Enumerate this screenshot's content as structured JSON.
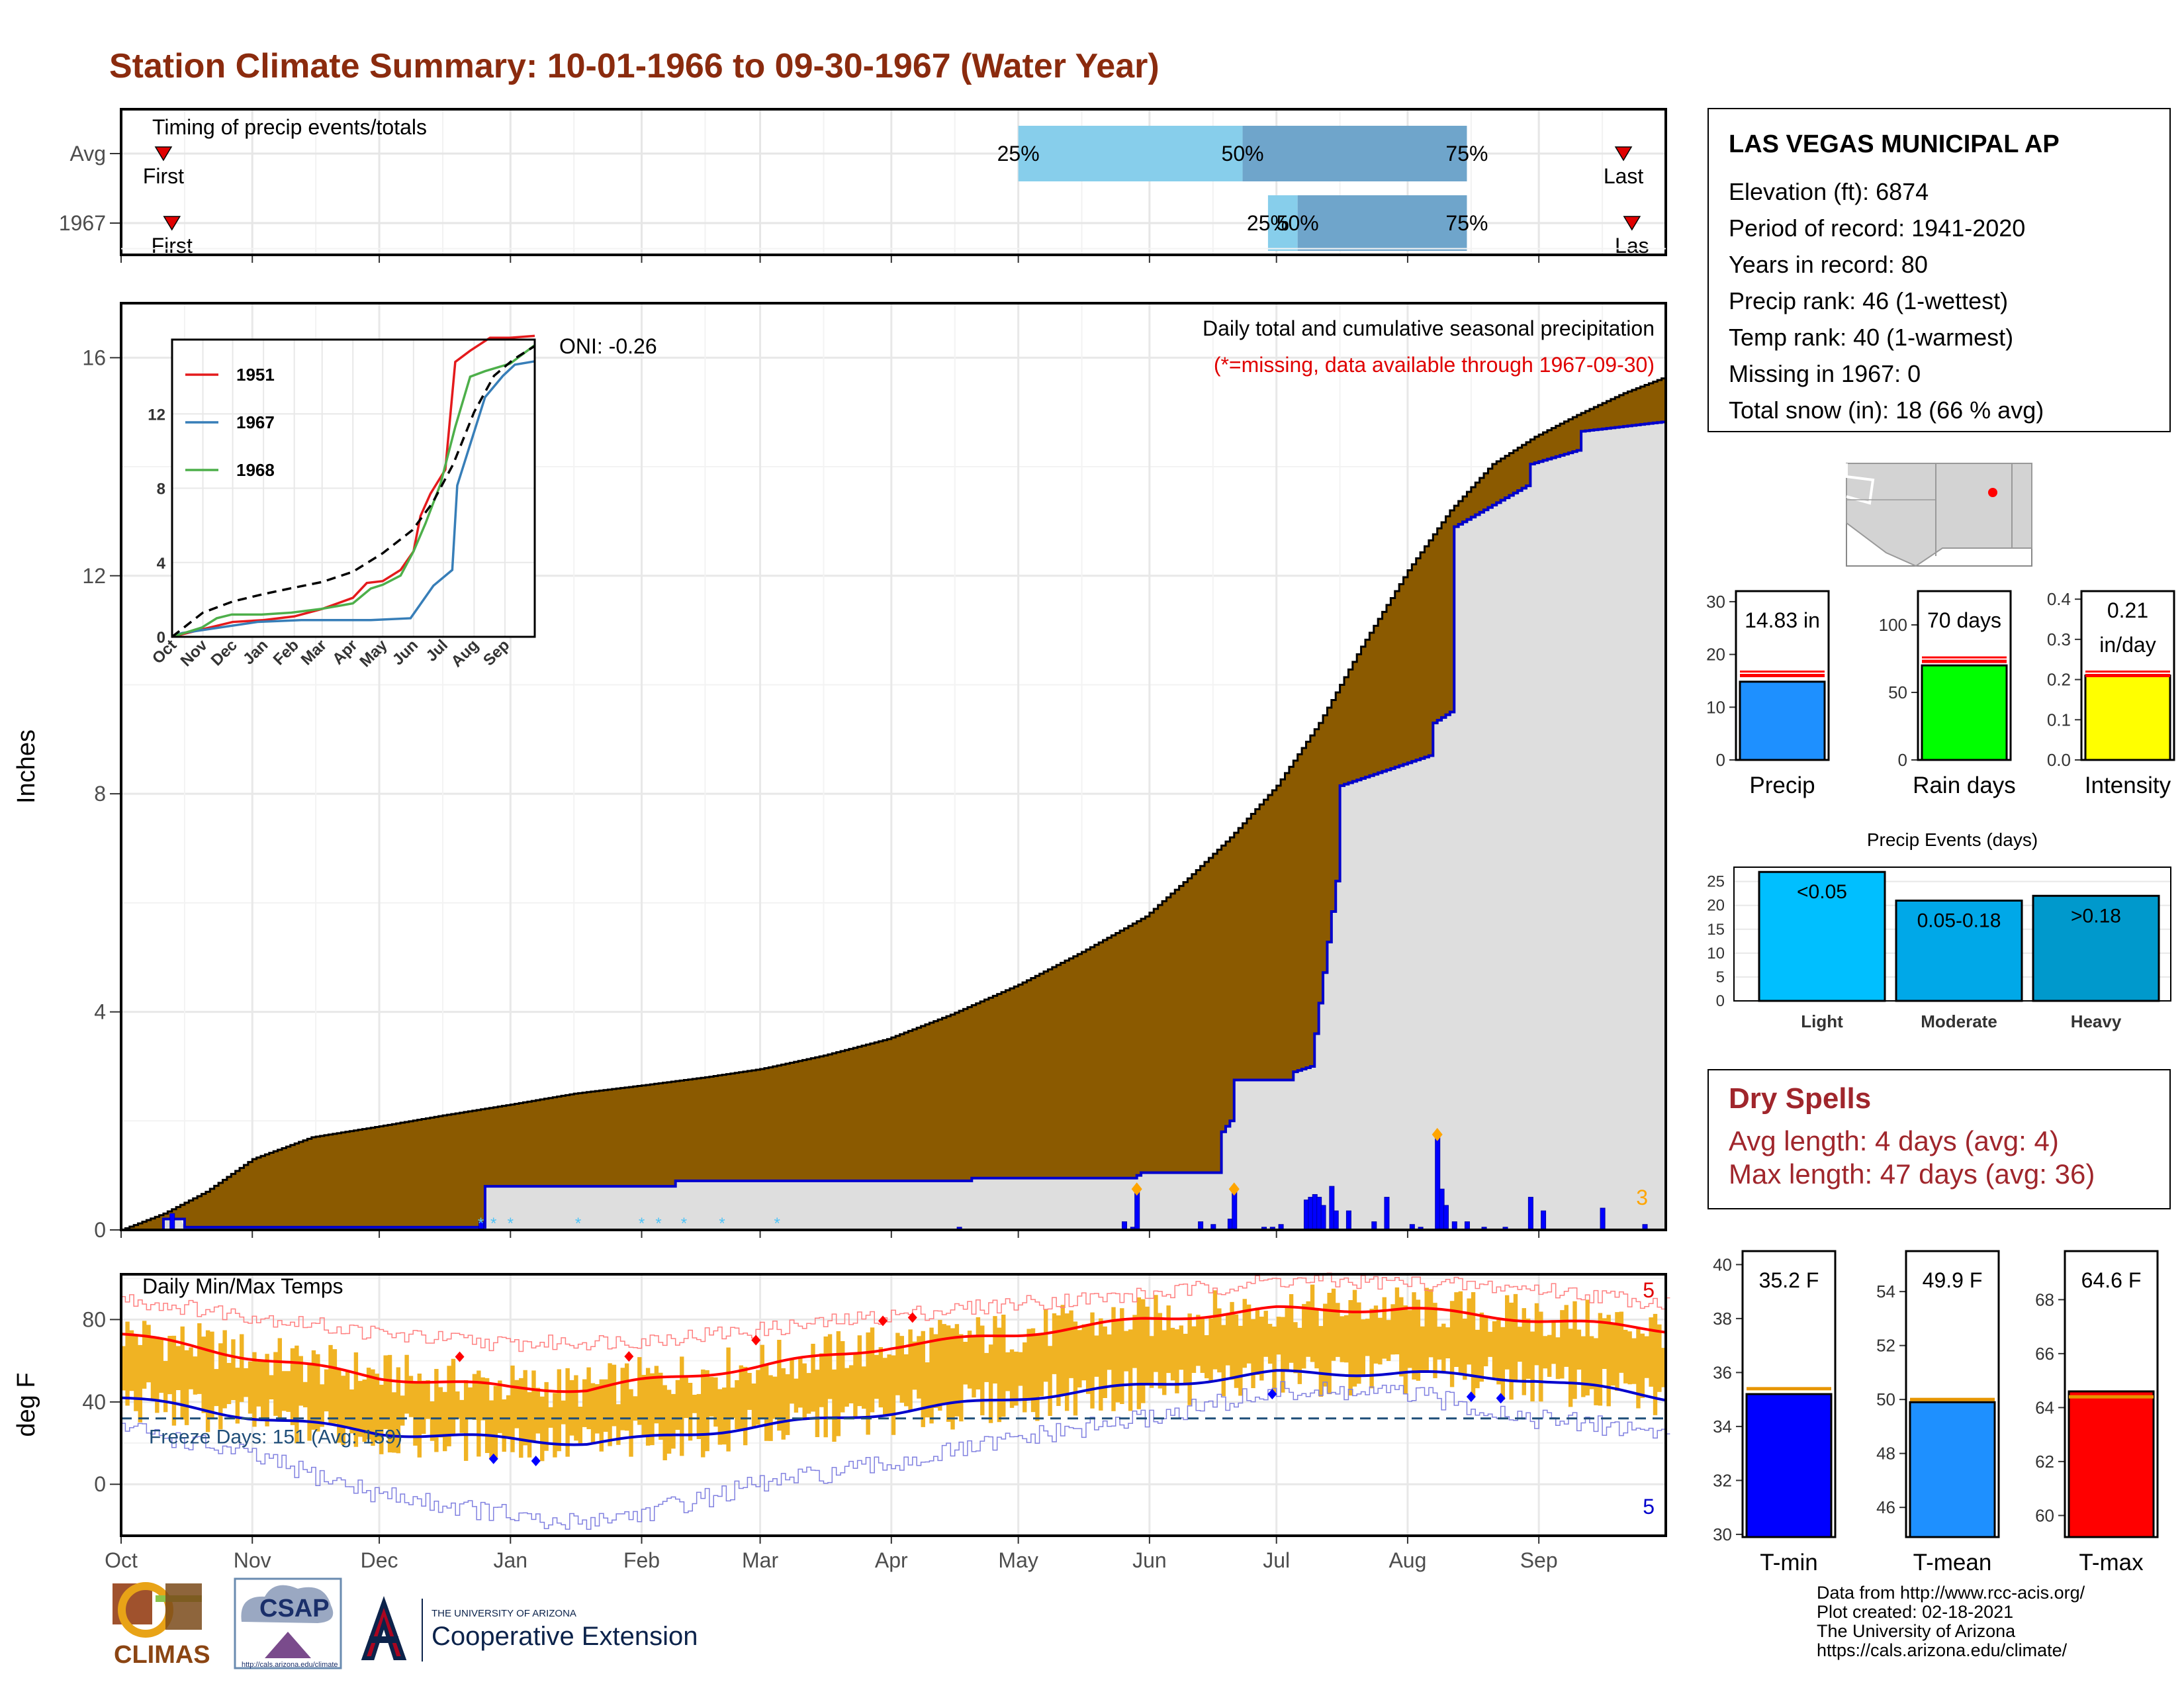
{
  "title": "Station Climate Summary: 10-01-1966 to 09-30-1967 (Water Year)",
  "colors": {
    "title": "#8b2b0e",
    "avg_fill": "#8b5a00",
    "above_avg_fill": "#1a8a1a",
    "cumulative_fill": "#dedede",
    "cumulative_line": "#0000cc",
    "daily_bar": "#0000ff",
    "temp_bar": "#f0b323",
    "tmax_avg": "#ff0000",
    "tmin_avg": "#0000cc",
    "dry_spell_text": "#a0262c"
  },
  "timing": {
    "title": "Timing of precip events/totals",
    "rows": [
      {
        "label": "Avg",
        "first_label": "First",
        "last_label": "Last",
        "first_day": 10,
        "last_day": 355,
        "p25_day": 212,
        "p50_day": 265,
        "p75_day": 318,
        "p25_label": "25%",
        "p50_label": "50%",
        "p75_label": "75%"
      },
      {
        "label": "1967",
        "first_label": "First",
        "last_label": "Las",
        "first_day": 12,
        "last_day": 357,
        "p25_day": 271,
        "p50_day": 278,
        "p75_day": 318,
        "p25_label": "25%",
        "p50_label": "50%",
        "p75_label": "75%"
      }
    ]
  },
  "main_chart": {
    "ylabel": "Inches",
    "annotation_title": "Daily total and cumulative seasonal precipitation",
    "annotation_missing": "(*=missing, data available through 1967-09-30)",
    "oni_label": "ONI: -0.26",
    "count_label": "3",
    "month_labels": [
      "Oct",
      "Nov",
      "Dec",
      "Jan",
      "Feb",
      "Mar",
      "Apr",
      "May",
      "Jun",
      "Jul",
      "Aug",
      "Sep"
    ]
  },
  "chart_data": [
    {
      "type": "area",
      "name": "cumulative precipitation",
      "ylim": [
        0,
        17
      ],
      "yticks": [
        0,
        4,
        8,
        12,
        16
      ],
      "x_unit": "day of water year (Oct 1 = 0)",
      "avg_cumulative": {
        "x": [
          0,
          10,
          20,
          31,
          45,
          61,
          76,
          92,
          107,
          123,
          138,
          151,
          166,
          181,
          196,
          212,
          227,
          242,
          252,
          262,
          273,
          283,
          293,
          304,
          314,
          324,
          334,
          344,
          355,
          365
        ],
        "y": [
          0,
          0.3,
          0.7,
          1.3,
          1.7,
          1.9,
          2.1,
          2.3,
          2.5,
          2.65,
          2.8,
          2.95,
          3.2,
          3.5,
          3.95,
          4.5,
          5.1,
          5.75,
          6.45,
          7.2,
          8.15,
          9.3,
          10.7,
          12.1,
          13.2,
          14.05,
          14.55,
          14.95,
          15.35,
          15.65
        ]
      },
      "cumulative_1967": {
        "x": [
          0,
          9,
          10,
          14,
          15,
          85,
          86,
          130,
          131,
          200,
          201,
          239,
          240,
          241,
          259,
          260,
          262,
          263,
          276,
          277,
          281,
          282,
          287,
          288,
          309,
          310,
          314,
          315,
          332,
          333,
          344,
          345,
          365
        ],
        "y": [
          0,
          0,
          0.2,
          0.2,
          0.05,
          0.05,
          0.8,
          0.8,
          0.9,
          0.9,
          0.95,
          0.95,
          1.0,
          1.05,
          1.05,
          1.8,
          2.0,
          2.75,
          2.75,
          2.9,
          3.0,
          3.6,
          6.4,
          8.15,
          8.7,
          9.3,
          9.5,
          12.9,
          13.65,
          14.05,
          14.3,
          14.65,
          14.83
        ]
      },
      "daily_precip": [
        {
          "day": 12,
          "value": 0.3
        },
        {
          "day": 85,
          "value": 0.15
        },
        {
          "day": 198,
          "value": 0.05
        },
        {
          "day": 237,
          "value": 0.15
        },
        {
          "day": 239,
          "value": 0.05
        },
        {
          "day": 240,
          "value": 0.75
        },
        {
          "day": 255,
          "value": 0.15
        },
        {
          "day": 258,
          "value": 0.1
        },
        {
          "day": 262,
          "value": 0.2
        },
        {
          "day": 263,
          "value": 0.75
        },
        {
          "day": 270,
          "value": 0.05
        },
        {
          "day": 272,
          "value": 0.05
        },
        {
          "day": 274,
          "value": 0.1
        },
        {
          "day": 280,
          "value": 0.55
        },
        {
          "day": 281,
          "value": 0.6
        },
        {
          "day": 282,
          "value": 0.65
        },
        {
          "day": 283,
          "value": 0.6
        },
        {
          "day": 284,
          "value": 0.45
        },
        {
          "day": 286,
          "value": 0.8
        },
        {
          "day": 287,
          "value": 0.35
        },
        {
          "day": 290,
          "value": 0.35
        },
        {
          "day": 296,
          "value": 0.15
        },
        {
          "day": 299,
          "value": 0.6
        },
        {
          "day": 305,
          "value": 0.1
        },
        {
          "day": 307,
          "value": 0.05
        },
        {
          "day": 311,
          "value": 1.75
        },
        {
          "day": 312,
          "value": 0.75
        },
        {
          "day": 313,
          "value": 0.45
        },
        {
          "day": 315,
          "value": 0.15
        },
        {
          "day": 318,
          "value": 0.15
        },
        {
          "day": 322,
          "value": 0.05
        },
        {
          "day": 327,
          "value": 0.05
        },
        {
          "day": 333,
          "value": 0.6
        },
        {
          "day": 336,
          "value": 0.35
        },
        {
          "day": 350,
          "value": 0.4
        },
        {
          "day": 360,
          "value": 0.1
        }
      ],
      "top_event_days": [
        240,
        263,
        311
      ]
    },
    {
      "type": "line",
      "name": "inset cumulative comparison",
      "ylim": [
        0,
        16
      ],
      "yticks": [
        0,
        4,
        8,
        12
      ],
      "month_labels": [
        "Oct",
        "Nov",
        "Dec",
        "Jan",
        "Feb",
        "Mar",
        "Apr",
        "May",
        "Jun",
        "Jul",
        "Aug",
        "Sep"
      ],
      "series": [
        {
          "name": "1951",
          "color": "#e41a1c",
          "x": [
            0,
            30,
            61,
            92,
            123,
            151,
            182,
            196,
            212,
            230,
            243,
            250,
            260,
            275,
            285,
            300,
            320,
            340,
            365
          ],
          "y": [
            0,
            0.4,
            0.8,
            0.9,
            1.1,
            1.5,
            2.1,
            2.9,
            3.0,
            3.6,
            4.6,
            6.5,
            7.7,
            9.0,
            14.8,
            15.4,
            16.1,
            16.1,
            16.2
          ]
        },
        {
          "name": "1967",
          "color": "#377eb8",
          "x": [
            0,
            10,
            86,
            130,
            200,
            240,
            263,
            282,
            287,
            315,
            333,
            345,
            365
          ],
          "y": [
            0,
            0.2,
            0.8,
            0.9,
            0.9,
            1.0,
            2.75,
            3.6,
            8.15,
            12.9,
            14.05,
            14.65,
            14.83
          ]
        },
        {
          "name": "1968",
          "color": "#4daf4a",
          "x": [
            0,
            30,
            45,
            60,
            90,
            120,
            150,
            182,
            200,
            212,
            230,
            243,
            255,
            270,
            285,
            300,
            315,
            340,
            365
          ],
          "y": [
            0,
            0.5,
            1.0,
            1.2,
            1.2,
            1.3,
            1.5,
            1.8,
            2.6,
            2.8,
            3.3,
            4.6,
            6.1,
            8.2,
            11.3,
            14.0,
            14.3,
            14.7,
            15.7
          ]
        },
        {
          "name": "Average",
          "color": "#000000",
          "x": [
            0,
            31,
            61,
            92,
            123,
            151,
            182,
            212,
            242,
            262,
            283,
            304,
            324,
            344,
            365
          ],
          "y": [
            0,
            1.3,
            1.9,
            2.3,
            2.65,
            2.95,
            3.5,
            4.5,
            5.75,
            7.2,
            9.3,
            12.1,
            14.05,
            14.95,
            15.65
          ]
        }
      ]
    },
    {
      "type": "bar",
      "name": "daily min/max temps",
      "ylim": [
        -25,
        102
      ],
      "yticks": [
        0,
        40,
        80
      ],
      "avg_tmax": {
        "x": [
          0,
          30,
          61,
          92,
          110,
          123,
          150,
          182,
          212,
          242,
          273,
          304,
          334,
          365
        ],
        "y": [
          73,
          62,
          52,
          47,
          46,
          50,
          57,
          67,
          73,
          80,
          85,
          85,
          80,
          75
        ]
      },
      "avg_tmin": {
        "x": [
          0,
          30,
          61,
          92,
          110,
          123,
          150,
          182,
          212,
          242,
          273,
          304,
          334,
          365
        ],
        "y": [
          42,
          33,
          25,
          22,
          20,
          22,
          28,
          35,
          42,
          48,
          54,
          54,
          51,
          42
        ]
      },
      "record_high": {
        "x": [
          0,
          30,
          61,
          92,
          123,
          151,
          182,
          212,
          242,
          273,
          304,
          334,
          365
        ],
        "y": [
          90,
          82,
          73,
          68,
          70,
          75,
          82,
          88,
          92,
          99,
          98,
          95,
          88
        ]
      },
      "record_low": {
        "x": [
          0,
          30,
          61,
          92,
          100,
          123,
          151,
          182,
          212,
          242,
          273,
          304,
          334,
          365
        ],
        "y": [
          28,
          14,
          -5,
          -15,
          -20,
          -14,
          0,
          10,
          22,
          32,
          45,
          44,
          32,
          25
        ]
      },
      "freeze_line": 32,
      "record_high_days": [
        80,
        120,
        150,
        180,
        187
      ],
      "record_low_days": [
        88,
        98,
        272,
        319,
        326
      ]
    },
    {
      "type": "bar",
      "name": "Precip",
      "value": 14.83,
      "avg": 16,
      "ylim": [
        0,
        32
      ],
      "yticks": [
        0,
        10,
        20,
        30
      ],
      "value_label": "14.83 in",
      "xlabel": "Precip",
      "color": "#1e90ff"
    },
    {
      "type": "bar",
      "name": "Rain days",
      "value": 70,
      "avg": 73,
      "ylim": [
        0,
        125
      ],
      "yticks": [
        0,
        50,
        100
      ],
      "value_label": "70 days",
      "xlabel": "Rain days",
      "color": "#00ff00"
    },
    {
      "type": "bar",
      "name": "Intensity",
      "value": 0.21,
      "avg": 0.21,
      "ylim": [
        0,
        0.42
      ],
      "yticks": [
        "0.0",
        "0.1",
        "0.2",
        "0.3",
        "0.4"
      ],
      "value_label_1": "0.21",
      "value_label_2": "in/day",
      "xlabel": "Intensity",
      "color": "#ffff00"
    },
    {
      "type": "bar",
      "name": "Precip Events (days)",
      "title": "Precip Events (days)",
      "categories": [
        "Light",
        "Moderate",
        "Heavy"
      ],
      "values": [
        27,
        21,
        22
      ],
      "labels": [
        "<0.05",
        "0.05-0.18",
        ">0.18"
      ],
      "ylim": [
        0,
        28
      ],
      "yticks": [
        0,
        5,
        10,
        15,
        20,
        25
      ],
      "colors": [
        "#00bfff",
        "#00a8e8",
        "#0099cc"
      ]
    },
    {
      "type": "bar",
      "name": "T-min",
      "value": 35.2,
      "avg": 35.4,
      "ylim": [
        29.9,
        40.5
      ],
      "yticks": [
        30,
        32,
        34,
        36,
        38,
        40
      ],
      "value_label": "35.2 F",
      "xlabel": "T-min",
      "color": "#0000ff"
    },
    {
      "type": "bar",
      "name": "T-mean",
      "value": 49.9,
      "avg": 50.0,
      "ylim": [
        44.9,
        55.5
      ],
      "yticks": [
        46,
        48,
        50,
        52,
        54
      ],
      "value_label": "49.9 F",
      "xlabel": "T-mean",
      "color": "#1e90ff"
    },
    {
      "type": "bar",
      "name": "T-max",
      "value": 64.6,
      "avg": 64.4,
      "ylim": [
        59.2,
        69.8
      ],
      "yticks": [
        60,
        62,
        64,
        66,
        68
      ],
      "value_label": "64.6 F",
      "xlabel": "T-max",
      "color": "#ff0000"
    }
  ],
  "temp_chart": {
    "title": "Daily Min/Max Temps",
    "ylabel": "deg F",
    "freeze_label": "Freeze Days: 151 (Avg: 159)",
    "high_count": "5",
    "low_count": "5"
  },
  "station": {
    "name": "LAS VEGAS MUNICIPAL AP",
    "lines": [
      "Elevation (ft): 6874",
      "Period of record: 1941-2020",
      "Years in record: 80",
      "Precip rank: 46 (1-wettest)",
      "Temp rank: 40 (1-warmest)",
      "Missing in 1967: 0",
      "Total snow (in): 18 (66 % avg)"
    ]
  },
  "dry_spells": {
    "title": "Dry Spells",
    "avg_line": "Avg length: 4 days (avg: 4)",
    "max_line": "Max length: 47 days (avg: 36)"
  },
  "logos": {
    "climas": "CLIMAS",
    "csap": "CSAP",
    "csap_url": "http://cals.arizona.edu/climate",
    "ua_top": "THE UNIVERSITY OF ARIZONA",
    "ua_main": "Cooperative Extension"
  },
  "credits": [
    "Data from http://www.rcc-acis.org/",
    "Plot created: 02-18-2021",
    "The University of Arizona",
    "https://cals.arizona.edu/climate/"
  ]
}
